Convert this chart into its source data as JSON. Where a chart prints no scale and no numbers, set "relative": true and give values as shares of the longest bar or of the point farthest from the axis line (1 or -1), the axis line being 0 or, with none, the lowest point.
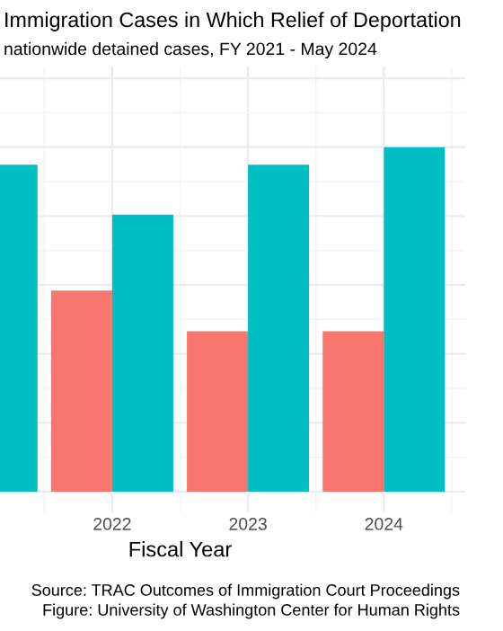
{
  "chart_data": {
    "type": "bar",
    "title": "Immigration Cases in Which Relief of Deportation",
    "subtitle": "nationwide detained cases, FY 2021 - May 2024",
    "xlabel": "Fiscal Year",
    "categories": [
      null,
      "2022",
      "2023",
      "2024"
    ],
    "series": [
      {
        "color": "#f8766d",
        "values": [
          null,
          0.584,
          0.466,
          0.466
        ]
      },
      {
        "color": "#00bfc4",
        "values": [
          0.949,
          0.804,
          0.949,
          1
        ]
      }
    ],
    "relative": true,
    "grid": true,
    "legend": false,
    "annotations": [
      "Source: TRAC Outcomes of Immigration Court Proceedings",
      "Figure: University of Washington Center for Human Rights"
    ]
  }
}
